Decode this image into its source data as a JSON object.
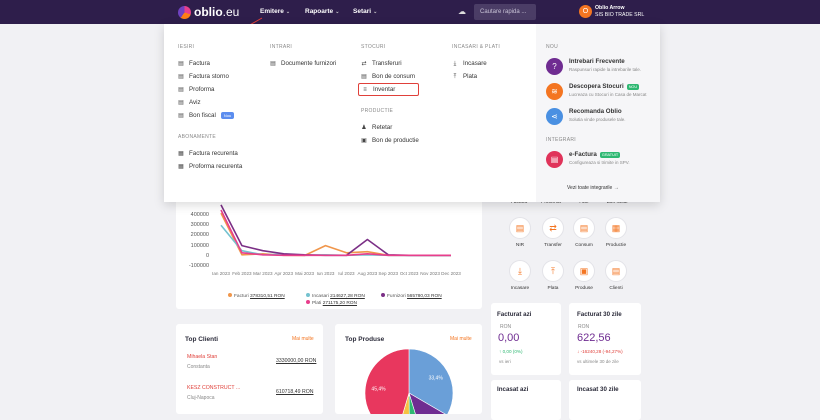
{
  "topbar": {
    "logo_main": "oblio",
    "logo_suffix": ".eu",
    "nav": [
      {
        "label": "Emitere"
      },
      {
        "label": "Rapoarte"
      },
      {
        "label": "Setari"
      }
    ],
    "search_placeholder": "Cautare rapida ...",
    "avatar_letter": "O",
    "user_name": "Oblio Arrow",
    "company_name": "SIS BIO TRADE SRL"
  },
  "menu": {
    "iesiri": {
      "heading": "IESIRI",
      "items": [
        "Factura",
        "Factura storno",
        "Proforma",
        "Aviz",
        "Bon fiscal"
      ],
      "bon_badge": "Nou"
    },
    "abonamente": {
      "heading": "ABONAMENTE",
      "items": [
        "Factura recurenta",
        "Proforma recurenta"
      ]
    },
    "intrari": {
      "heading": "INTRARI",
      "items": [
        "Documente furnizori"
      ]
    },
    "stocuri": {
      "heading": "STOCURI",
      "items": [
        "Transferuri",
        "Bon de consum",
        "Inventar"
      ]
    },
    "productie": {
      "heading": "PRODUCTIE",
      "items": [
        "Retetar",
        "Bon de productie"
      ]
    },
    "incasari": {
      "heading": "INCASARI & PLATI",
      "items": [
        "Incasare",
        "Plata"
      ]
    },
    "side": {
      "nou_heading": "NOU",
      "items": [
        {
          "title": "Intrebari Frecvente",
          "sub": "Raspunsuri rapide la intrebarile tale.",
          "color": "#6f2c91"
        },
        {
          "title": "Descopera Stocuri",
          "badge": "NOU",
          "sub": "Lucreaza cu Stocuri in Casa de Marcat",
          "color": "#f47521"
        },
        {
          "title": "Recomanda Oblio",
          "sub": "Solutia vinde produsele tale.",
          "color": "#4a90e2"
        }
      ],
      "integrari_heading": "INTEGRARI",
      "efactura_title": "e-Factura",
      "efactura_badge": "GRATUIT",
      "efactura_sub": "Configureaza si trimite in SPV.",
      "all_integrations": "Vezi toate integrarile →"
    }
  },
  "chart_data": {
    "type": "line",
    "categories": [
      "Ian 2023",
      "Feb 2023",
      "Mar 2023",
      "Apr 2023",
      "Mai 2023",
      "Iun 2023",
      "Iul 2023",
      "Aug 2023",
      "Sep 2023",
      "Oct 2023",
      "Nov 2023",
      "Dec 2023"
    ],
    "ylim": [
      -100000,
      450000
    ],
    "yticks": [
      "400000",
      "300000",
      "200000",
      "100000",
      "0",
      "-100000"
    ],
    "series": [
      {
        "name": "Facturi",
        "total": "378310,51 RON",
        "color": "#f0964b",
        "values": [
          420000,
          10000,
          20000,
          5000,
          3000,
          100000,
          30000,
          40000,
          5000,
          5000,
          3000,
          3000
        ]
      },
      {
        "name": "Incasari",
        "total": "214627,28 RON",
        "color": "#74c2cf",
        "values": [
          300000,
          50000,
          10000,
          15000,
          5000,
          10000,
          5000,
          10000,
          5000,
          3000,
          3000,
          3000
        ]
      },
      {
        "name": "Furnizori",
        "total": "565780,03 RON",
        "color": "#7b2f86",
        "values": [
          500000,
          100000,
          50000,
          20000,
          10000,
          5000,
          5000,
          160000,
          10000,
          5000,
          5000,
          5000
        ]
      },
      {
        "name": "Plati",
        "total": "271175,20 RON",
        "color": "#e83e8c",
        "values": [
          450000,
          30000,
          10000,
          5000,
          5000,
          5000,
          5000,
          20000,
          5000,
          5000,
          5000,
          5000
        ]
      }
    ]
  },
  "quick_actions": {
    "top_labels": [
      "Factura",
      "Proforma",
      "Aviz",
      "Bon fiscal"
    ],
    "items": [
      {
        "label": "NIR",
        "icon": "▤"
      },
      {
        "label": "Transfer",
        "icon": "⇄"
      },
      {
        "label": "Consum",
        "icon": "▤"
      },
      {
        "label": "Productie",
        "icon": "▦"
      },
      {
        "label": "Incasare",
        "icon": "⤓"
      },
      {
        "label": "Plata",
        "icon": "⤒"
      },
      {
        "label": "Produse",
        "icon": "▣"
      },
      {
        "label": "Clienti",
        "icon": "▤"
      }
    ]
  },
  "top_clienti": {
    "title": "Top Clienti",
    "more": "Mai multe",
    "rows": [
      {
        "name": "Mihaela Stan",
        "city": "Constanta",
        "amount": "3330000,00 RON"
      },
      {
        "name": "KESZ CONSTRUCT ...",
        "city": "Cluj-Napoca",
        "amount": "610718,49 RON"
      }
    ]
  },
  "top_produse": {
    "title": "Top Produse",
    "more": "Mai multe",
    "pie": [
      {
        "label": "45,4%",
        "value": 45.4,
        "color": "#e8375e"
      },
      {
        "label": "33,4%",
        "value": 33.4,
        "color": "#6a9fd8"
      },
      {
        "label": "11,9%",
        "value": 11.9,
        "color": "#6f2c91"
      },
      {
        "label": "",
        "value": 4.5,
        "color": "#2eb872"
      },
      {
        "label": "",
        "value": 4.8,
        "color": "#f5c242"
      }
    ]
  },
  "stats": {
    "facturat_azi": {
      "title": "Facturat azi",
      "unit": "RON",
      "value": "0,00",
      "change": "↑ 0,00 (0%)",
      "compare": "vs ieri"
    },
    "facturat_30": {
      "title": "Facturat 30 zile",
      "unit": "RON",
      "value": "622,56",
      "change": "↓ -16240,28 (-94,27%)",
      "compare": "vs ultimele 30 de zile"
    },
    "incasat_azi": {
      "title": "Incasat azi"
    },
    "incasat_30": {
      "title": "Incasat 30 zile"
    }
  }
}
